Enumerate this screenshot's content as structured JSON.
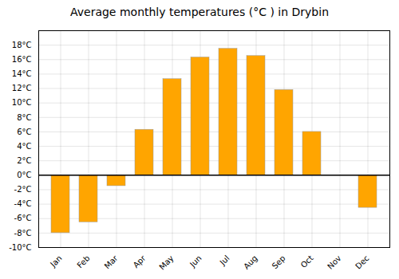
{
  "chart_data": {
    "type": "bar",
    "title": "Average monthly temperatures (°C ) in Drybin",
    "categories": [
      "Jan",
      "Feb",
      "Mar",
      "Apr",
      "May",
      "Jun",
      "Jul",
      "Aug",
      "Sep",
      "Oct",
      "Nov",
      "Dec"
    ],
    "values": [
      -8.0,
      -6.5,
      -1.5,
      6.3,
      13.3,
      16.3,
      17.5,
      16.5,
      11.8,
      6.0,
      0.0,
      -4.5
    ],
    "color": "#FFA500",
    "ylim": [
      -10,
      20
    ],
    "yticks": [
      {
        "value": -10,
        "label": "-10°C"
      },
      {
        "value": -8,
        "label": "-8°C"
      },
      {
        "value": -6,
        "label": "-6°C"
      },
      {
        "value": -4,
        "label": "-4°C"
      },
      {
        "value": -2,
        "label": "-2°C"
      },
      {
        "value": 0,
        "label": "0°C"
      },
      {
        "value": 2,
        "label": "2°C"
      },
      {
        "value": 4,
        "label": "4°C"
      },
      {
        "value": 6,
        "label": "6°C"
      },
      {
        "value": 8,
        "label": "8°C"
      },
      {
        "value": 10,
        "label": "10°C"
      },
      {
        "value": 12,
        "label": "12°C"
      },
      {
        "value": 14,
        "label": "14°C"
      },
      {
        "value": 16,
        "label": "16°C"
      },
      {
        "value": 18,
        "label": "18°C"
      }
    ],
    "grid": true
  }
}
